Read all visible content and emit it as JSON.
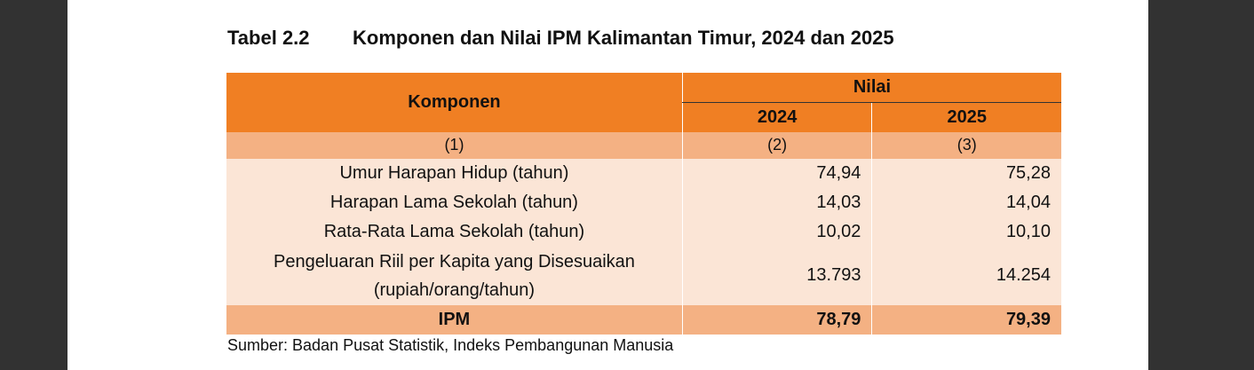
{
  "title": {
    "number": "Tabel 2.2",
    "text": "Komponen dan Nilai IPM Kalimantan Timur, 2024 dan 2025"
  },
  "header": {
    "komponen": "Komponen",
    "nilai": "Nilai",
    "years": [
      "2024",
      "2025"
    ],
    "col_nums": [
      "(1)",
      "(2)",
      "(3)"
    ]
  },
  "rows": [
    {
      "label": "Umur Harapan Hidup (tahun)",
      "v2024": "74,94",
      "v2025": "75,28"
    },
    {
      "label": "Harapan Lama Sekolah (tahun)",
      "v2024": "14,03",
      "v2025": "14,04"
    },
    {
      "label": "Rata-Rata Lama Sekolah (tahun)",
      "v2024": "10,02",
      "v2025": "10,10"
    },
    {
      "label": "Pengeluaran Riil per Kapita yang Disesuaikan",
      "label2": "(rupiah/orang/tahun)",
      "v2024": "13.793",
      "v2025": "14.254"
    }
  ],
  "ipm": {
    "label": "IPM",
    "v2024": "78,79",
    "v2025": "79,39"
  },
  "source": "Sumber: Badan Pusat Statistik, Indeks Pembangunan Manusia",
  "colors": {
    "header": "#F07F23",
    "subheader": "#F4B183",
    "body": "#FBE5D6"
  }
}
